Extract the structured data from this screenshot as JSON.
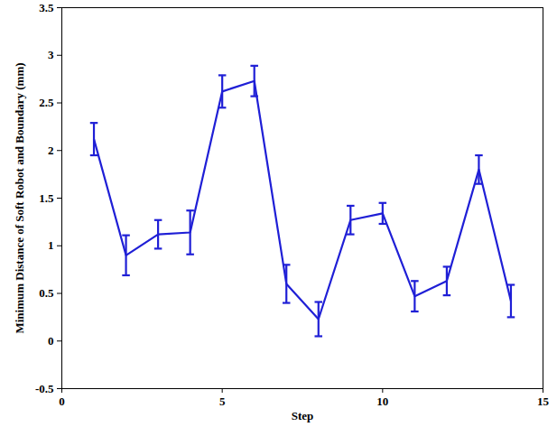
{
  "chart_data": {
    "type": "line",
    "x_label": "Step",
    "y_label": "Minimum Distance of Soft Robot and Boundary (mm)",
    "x": [
      1,
      2,
      3,
      4,
      5,
      6,
      7,
      8,
      9,
      10,
      11,
      12,
      13,
      14
    ],
    "values": [
      2.12,
      0.9,
      1.12,
      1.14,
      2.62,
      2.73,
      0.6,
      0.23,
      1.27,
      1.34,
      0.47,
      0.63,
      1.8,
      0.42
    ],
    "errors": [
      0.17,
      0.21,
      0.15,
      0.23,
      0.17,
      0.16,
      0.2,
      0.18,
      0.15,
      0.11,
      0.16,
      0.15,
      0.15,
      0.17
    ],
    "color": "#1f1fd6",
    "line_style": "solid",
    "xlim": [
      0,
      15
    ],
    "xticks": [
      0,
      5,
      10,
      15
    ],
    "ylim": [
      -0.5,
      3.5
    ],
    "yticks": [
      -0.5,
      0,
      0.5,
      1,
      1.5,
      2,
      2.5,
      3,
      3.5
    ],
    "grid": false
  }
}
